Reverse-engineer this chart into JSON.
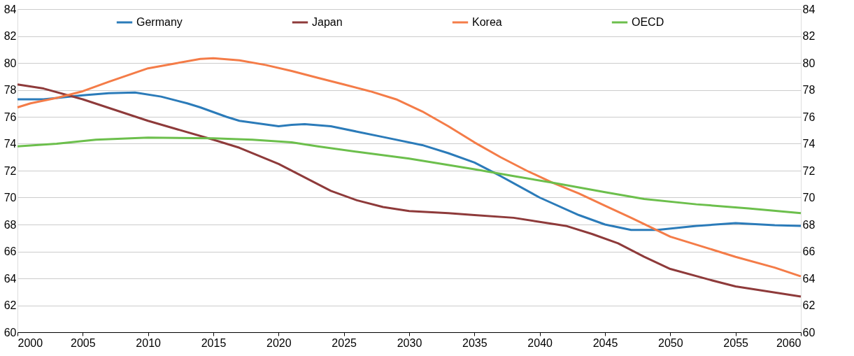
{
  "chart_data": {
    "type": "line",
    "xlim": [
      2000,
      2060
    ],
    "xticks": [
      2000,
      2005,
      2010,
      2015,
      2020,
      2025,
      2030,
      2035,
      2040,
      2045,
      2050,
      2055,
      2060
    ],
    "ylim": [
      60,
      84
    ],
    "yticks": [
      60,
      62,
      64,
      66,
      68,
      70,
      72,
      74,
      76,
      78,
      80,
      82,
      84
    ],
    "y2lim": [
      60,
      84
    ],
    "y2ticks": [
      60,
      62,
      64,
      66,
      68,
      70,
      72,
      74,
      76,
      78,
      80,
      82,
      84
    ],
    "grid": "y",
    "legend": "top",
    "marker": "none",
    "line_style": "solid",
    "series": [
      {
        "name": "Germany",
        "color": "#2b7bb9",
        "x": [
          2000,
          2002,
          2005,
          2007,
          2009,
          2011,
          2013,
          2014,
          2016,
          2017,
          2020,
          2021,
          2022,
          2024,
          2026,
          2028,
          2031,
          2033,
          2035,
          2037,
          2040,
          2043,
          2045,
          2047,
          2049,
          2052,
          2055,
          2058,
          2060
        ],
        "values": [
          77.3,
          77.3,
          77.6,
          77.75,
          77.8,
          77.5,
          77.0,
          76.7,
          76.0,
          75.7,
          75.3,
          75.4,
          75.45,
          75.3,
          74.9,
          74.5,
          73.9,
          73.3,
          72.6,
          71.6,
          70.0,
          68.7,
          68.0,
          67.6,
          67.6,
          67.9,
          68.1,
          67.95,
          67.9
        ]
      },
      {
        "name": "Japan",
        "color": "#8e3a3a",
        "x": [
          2000,
          2002,
          2005,
          2010,
          2015,
          2017,
          2020,
          2022,
          2024,
          2026,
          2028,
          2030,
          2033,
          2035,
          2038,
          2040,
          2042,
          2044,
          2046,
          2048,
          2050,
          2053,
          2055,
          2060
        ],
        "values": [
          78.4,
          78.1,
          77.3,
          75.7,
          74.3,
          73.7,
          72.5,
          71.5,
          70.5,
          69.8,
          69.3,
          69.0,
          68.85,
          68.7,
          68.5,
          68.2,
          67.9,
          67.3,
          66.6,
          65.6,
          64.7,
          63.9,
          63.4,
          62.65
        ]
      },
      {
        "name": "Korea",
        "color": "#f47c48",
        "x": [
          2000,
          2001,
          2003,
          2005,
          2007,
          2010,
          2012,
          2014,
          2015,
          2017,
          2019,
          2021,
          2023,
          2025,
          2027,
          2029,
          2031,
          2033,
          2035,
          2037,
          2039,
          2041,
          2043,
          2045,
          2047,
          2050,
          2053,
          2055,
          2058,
          2060
        ],
        "values": [
          76.7,
          77.0,
          77.4,
          77.9,
          78.6,
          79.6,
          79.95,
          80.3,
          80.35,
          80.2,
          79.85,
          79.4,
          78.9,
          78.4,
          77.9,
          77.3,
          76.4,
          75.3,
          74.1,
          73.0,
          72.0,
          71.1,
          70.3,
          69.4,
          68.5,
          67.1,
          66.2,
          65.6,
          64.8,
          64.15
        ]
      },
      {
        "name": "OECD",
        "color": "#6cbf4c",
        "x": [
          2000,
          2003,
          2006,
          2010,
          2015,
          2018,
          2021,
          2023,
          2026,
          2030,
          2035,
          2038,
          2041,
          2045,
          2048,
          2052,
          2056,
          2060
        ],
        "values": [
          73.8,
          74.0,
          74.3,
          74.45,
          74.4,
          74.3,
          74.1,
          73.8,
          73.4,
          72.9,
          72.1,
          71.6,
          71.1,
          70.4,
          69.9,
          69.5,
          69.2,
          68.85
        ]
      }
    ]
  }
}
